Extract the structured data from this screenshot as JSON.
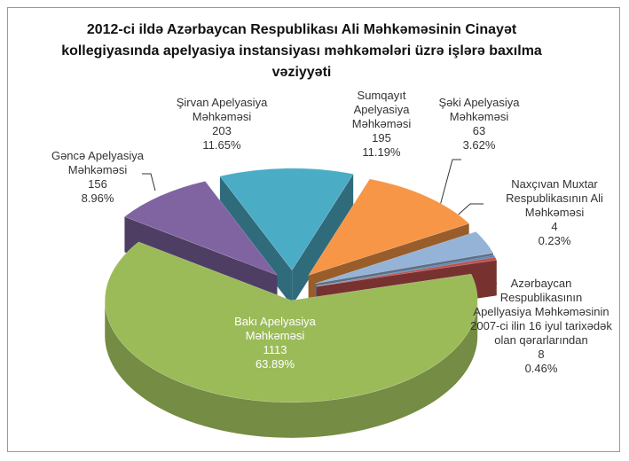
{
  "chart_data": {
    "type": "pie",
    "title": "2012-ci ildə Azərbaycan Respublikası Ali Məhkəməsinin Cinayət kollegiyasında apelyasiya instansiyası məhkəmələri üzrə işlərə baxılma vəziyyəti",
    "categories": [
      "Bakı Apelyasiya Məhkəməsi",
      "Gəncə Apelyasiya Məhkəməsi",
      "Şirvan Apelyasiya Məhkəməsi",
      "Sumqayıt Apelyasiya Məhkəməsi",
      "Şəki Apelyasiya Məhkəməsi",
      "Naxçıvan Muxtar Respublikasının Ali Məhkəməsi",
      "Azərbaycan Respublikasının Apellyasiya Məhkəməsinin 2007-ci ilin 16 iyul tarixədək olan qərarlarından"
    ],
    "values": [
      1113,
      156,
      203,
      195,
      63,
      4,
      8
    ],
    "percent_labels": [
      "63.89%",
      "8.96%",
      "11.65%",
      "11.19%",
      "3.62%",
      "0.23%",
      "0.46%"
    ],
    "colors": [
      "#9bbb59",
      "#8064a2",
      "#4bacc6",
      "#f79646",
      "#95b3d7",
      "#4f81bd",
      "#c0504d"
    ]
  }
}
